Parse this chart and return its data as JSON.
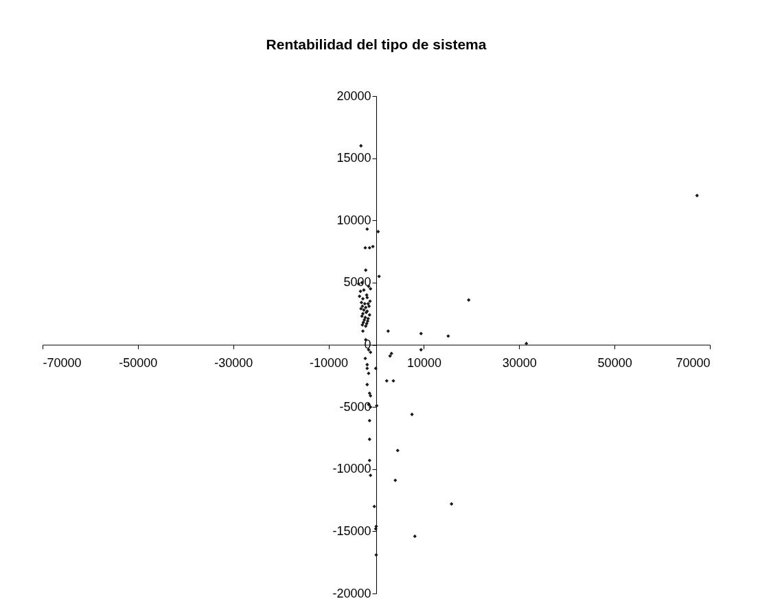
{
  "chart_data": {
    "type": "scatter",
    "title": "Rentabilidad del tipo de sistema",
    "marker": "diamond",
    "grid": false,
    "xlim": [
      -70000,
      70000
    ],
    "xticks": [
      -70000,
      -50000,
      -30000,
      -10000,
      10000,
      30000,
      50000,
      70000
    ],
    "ylim": [
      -20000,
      20000
    ],
    "yticks": [
      -20000,
      -15000,
      -10000,
      -5000,
      0,
      5000,
      10000,
      15000,
      20000
    ],
    "series": [
      {
        "color": "#1a1a1a",
        "x": [
          -3200,
          67300,
          -1900,
          400,
          -2300,
          -1400,
          -700,
          -2200,
          600,
          -3700,
          -3000,
          -1600,
          -1200,
          -3300,
          -2600,
          -2000,
          -3500,
          -2800,
          -1900,
          -1300,
          -3100,
          -2400,
          -1700,
          -2900,
          -2200,
          -1500,
          -3200,
          -2600,
          -1900,
          -2800,
          -2100,
          -1400,
          -3000,
          -2300,
          -1700,
          -2500,
          -1800,
          -2700,
          -2000,
          -2900,
          -2200,
          -2800,
          2500,
          9400,
          15100,
          19400,
          31500,
          9400,
          2900,
          3200,
          -100,
          2200,
          3600,
          100,
          7500,
          4500,
          4000,
          15800,
          8100,
          -2200,
          -1600,
          -1200,
          -2300,
          -1900,
          -1600,
          -1900,
          -1900,
          -1400,
          -1200,
          -1600,
          -1200,
          -1400,
          -1400,
          -1400,
          -1200,
          -400,
          -100,
          0,
          0
        ],
        "values": [
          16000,
          12000,
          9300,
          9100,
          7800,
          7800,
          7900,
          6000,
          5500,
          4900,
          5000,
          4700,
          4500,
          4300,
          4400,
          4000,
          3900,
          3700,
          3800,
          3500,
          3400,
          3300,
          3300,
          3100,
          3000,
          3100,
          2900,
          2800,
          2700,
          2500,
          2600,
          2400,
          2300,
          2200,
          2100,
          2000,
          1900,
          1800,
          1700,
          1600,
          1500,
          1100,
          1100,
          900,
          700,
          3600,
          100,
          -400,
          -900,
          -700,
          -1900,
          -2900,
          -2900,
          -4900,
          -5600,
          -8500,
          -10900,
          -12800,
          -15400,
          400,
          -400,
          -600,
          -1100,
          -1600,
          -2300,
          -1900,
          -3200,
          -3900,
          -4100,
          -4800,
          -5000,
          -6100,
          -7600,
          -9300,
          -10500,
          -13000,
          -14800,
          -14600,
          -16900
        ]
      }
    ]
  }
}
